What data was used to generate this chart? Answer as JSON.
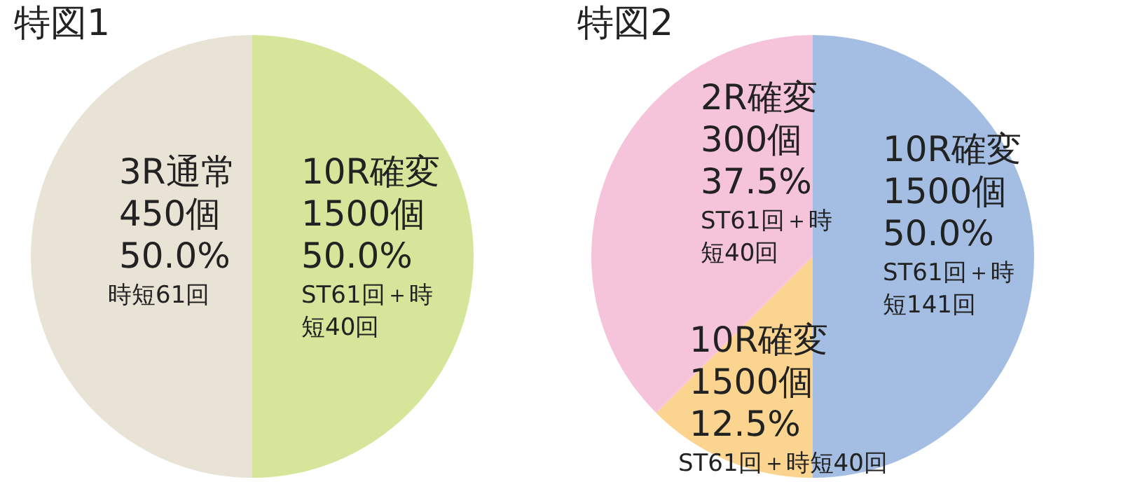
{
  "chart_data": [
    {
      "type": "pie",
      "title": "特図1",
      "categories": [
        "10R確変",
        "3R通常"
      ],
      "values": [
        50,
        50
      ],
      "colors": [
        "#d5e59a",
        "#e9e3d5"
      ],
      "value_labels": [
        "50.0%",
        "50.0%"
      ],
      "annotations": [
        "1500個",
        "ST61回＋時短40回",
        "450個",
        "時短61回"
      ]
    },
    {
      "type": "pie",
      "title": "特図2",
      "categories": [
        "10R確変",
        "10R確変",
        "2R確変"
      ],
      "values": [
        50,
        12.5,
        37.5
      ],
      "colors": [
        "#a4bee3",
        "#fbd48f",
        "#f5c4db"
      ],
      "value_labels": [
        "50.0%",
        "12.5%",
        "37.5%"
      ],
      "annotations": [
        "1500個",
        "ST61回＋時短141回",
        "1500個",
        "ST61回＋時短40回",
        "300個",
        "ST61回＋時短40回"
      ]
    }
  ]
}
